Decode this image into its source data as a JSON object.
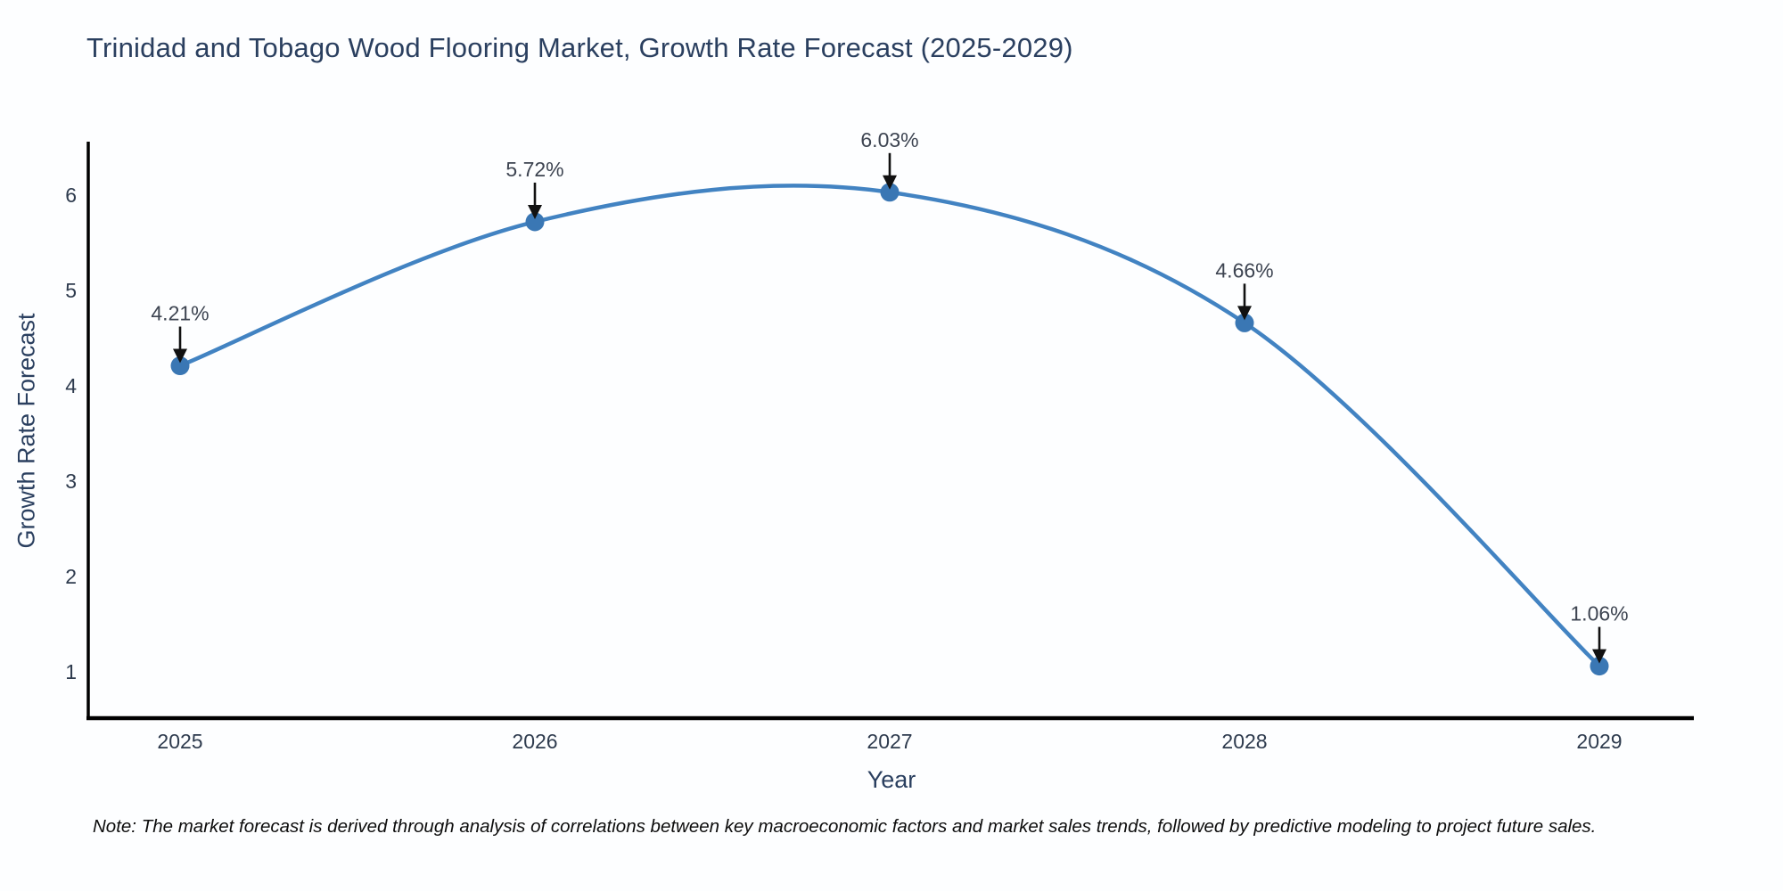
{
  "note": "Note: The market forecast is derived through analysis of correlations between key macroeconomic factors and market sales trends, followed by predictive modeling to project future sales.",
  "chart_data": {
    "type": "line",
    "title": "Trinidad and Tobago Wood Flooring Market, Growth Rate Forecast (2025-2029)",
    "xlabel": "Year",
    "ylabel": "Growth Rate Forecast",
    "x": [
      2025,
      2026,
      2027,
      2028,
      2029
    ],
    "series": [
      {
        "name": "Growth Rate Forecast",
        "values": [
          4.21,
          5.72,
          6.03,
          4.66,
          1.06
        ]
      }
    ],
    "point_labels": [
      "4.21%",
      "5.72%",
      "6.03%",
      "4.66%",
      "1.06%"
    ],
    "yticks": [
      1,
      2,
      3,
      4,
      5,
      6
    ],
    "ylim": [
      0.52,
      6.56
    ],
    "line_shape": "spline",
    "grid": false,
    "legend": "none",
    "colors": {
      "line": "#4283c2",
      "marker": "#3a77b4",
      "axis": "#000000",
      "arrow": "#111111",
      "title": "#2a3f5f",
      "tick_text": "#2e3b4e",
      "annotation_text": "#3d4451",
      "background": "#fdfeff"
    }
  }
}
